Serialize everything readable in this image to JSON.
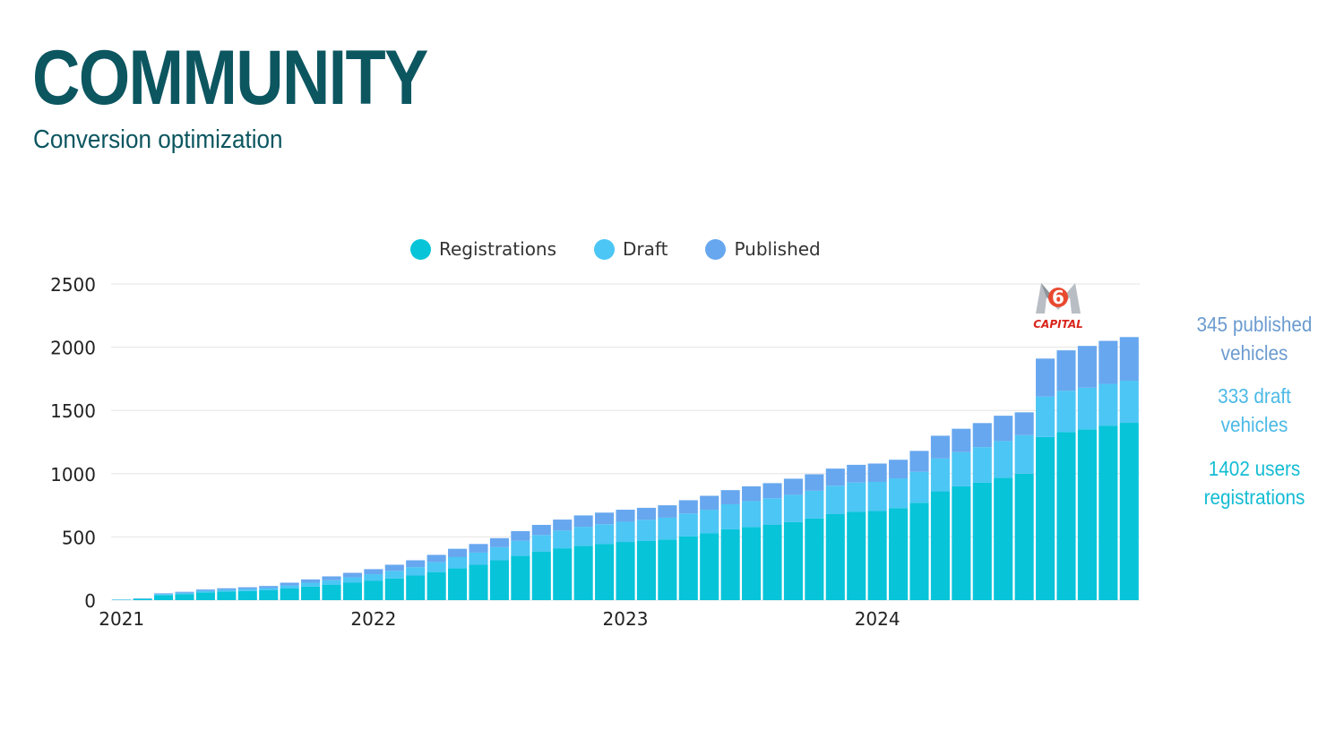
{
  "header": {
    "title": "COMMUNITY",
    "subtitle": "Conversion optimization"
  },
  "annotations": {
    "published": [
      "345 published",
      "vehicles"
    ],
    "draft": [
      "333 draft",
      "vehicles"
    ],
    "registrations": [
      "1402 users",
      "registrations"
    ],
    "logo_text": "CAPITAL",
    "logo_numeral": "6"
  },
  "colors": {
    "title": "#0c5660",
    "registrations": "#07c4d9",
    "draft": "#4cc6f5",
    "published": "#67a7ef",
    "published_text": "#6b9bd0",
    "draft_text": "#4bb9e6",
    "registrations_text": "#13bcd3",
    "grid": "#e4e4e4"
  },
  "chart_data": {
    "type": "bar",
    "stacked": true,
    "x_tick_labels": [
      "2021",
      "2022",
      "2023",
      "2024"
    ],
    "x_tick_indices": [
      0,
      12,
      24,
      36
    ],
    "y_ticks": [
      0,
      500,
      1000,
      1500,
      2000,
      2500
    ],
    "ylim": [
      0,
      2500
    ],
    "grid": true,
    "legend_position": "top-center",
    "series": [
      {
        "name": "Registrations",
        "values": [
          3,
          10,
          40,
          48,
          62,
          68,
          72,
          78,
          92,
          108,
          123,
          138,
          155,
          172,
          195,
          222,
          252,
          280,
          315,
          350,
          385,
          410,
          430,
          445,
          460,
          470,
          480,
          505,
          530,
          560,
          578,
          595,
          618,
          645,
          680,
          700,
          705,
          728,
          770,
          860,
          900,
          930,
          968,
          1000,
          1290,
          1330,
          1350,
          1380,
          1402
        ]
      },
      {
        "name": "Draft",
        "values": [
          1,
          3,
          8,
          10,
          12,
          14,
          16,
          18,
          24,
          30,
          35,
          42,
          50,
          60,
          66,
          78,
          88,
          96,
          104,
          120,
          130,
          140,
          150,
          155,
          160,
          165,
          172,
          180,
          185,
          198,
          205,
          210,
          215,
          220,
          225,
          230,
          230,
          235,
          245,
          260,
          270,
          280,
          290,
          305,
          320,
          325,
          330,
          330,
          333
        ]
      },
      {
        "name": "Published",
        "values": [
          1,
          2,
          6,
          8,
          10,
          12,
          14,
          16,
          22,
          26,
          30,
          36,
          40,
          48,
          54,
          58,
          66,
          68,
          71,
          76,
          80,
          87,
          90,
          92,
          95,
          95,
          98,
          105,
          110,
          112,
          117,
          120,
          127,
          130,
          135,
          140,
          145,
          147,
          165,
          180,
          185,
          190,
          200,
          180,
          300,
          320,
          330,
          340,
          345
        ]
      }
    ]
  }
}
